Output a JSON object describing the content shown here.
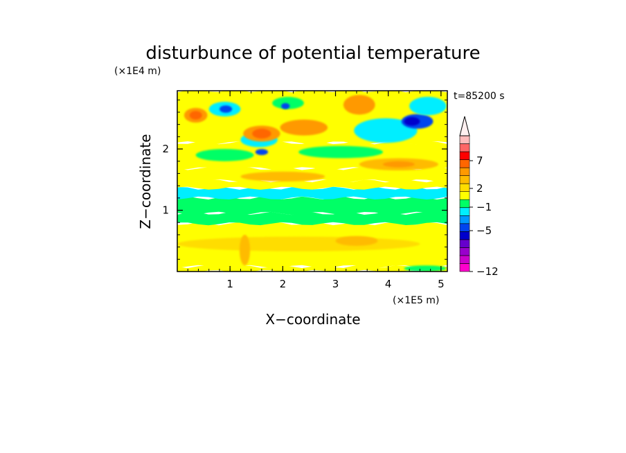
{
  "chart_data": {
    "type": "heatmap",
    "title": "disturbunce of potential temperature",
    "xlabel": "X−coordinate",
    "ylabel": "Z−coordinate",
    "x_unit": "(×1E5 m)",
    "y_unit": "(×1E4 m)",
    "time_label": "t=85200 s",
    "xlim": [
      0,
      5.12
    ],
    "ylim": [
      0,
      2.95
    ],
    "x_ticks": [
      1,
      2,
      3,
      4,
      5
    ],
    "y_ticks": [
      1,
      2
    ],
    "colorbar": {
      "levels": [
        -12,
        -10,
        -8,
        -7,
        -6,
        -5,
        -4,
        -3,
        -2,
        -1,
        0,
        1,
        2,
        3,
        4,
        5,
        6,
        7,
        8,
        9,
        10
      ],
      "colors": [
        "#ff00cc",
        "#cc00cc",
        "#9900cc",
        "#6600cc",
        "#0000cc",
        "#0044ee",
        "#0099ff",
        "#00eeff",
        "#00ff66",
        "#ffff00",
        "#ffdd00",
        "#ffbb00",
        "#ff9900",
        "#ff6600",
        "#ff0000",
        "#ff6666",
        "#ffbbbb"
      ],
      "tick_labels": [
        "7",
        "2",
        "−1",
        "−5",
        "−12"
      ],
      "extend": "max"
    },
    "bands": [
      {
        "z": [
          0.0,
          0.08
        ],
        "value": 1,
        "color": "#ffff00"
      },
      {
        "z": [
          0.08,
          0.78
        ],
        "value": 1,
        "color": "#ffff00"
      },
      {
        "z": [
          0.78,
          0.95
        ],
        "value": -1,
        "color": "#00ff66"
      },
      {
        "z": [
          0.95,
          1.2
        ],
        "value": -1,
        "color": "#00ff66"
      },
      {
        "z": [
          1.2,
          1.36
        ],
        "value": -2,
        "color": "#00eeff"
      },
      {
        "z": [
          1.36,
          1.48
        ],
        "value": 1,
        "color": "#ffff00"
      },
      {
        "z": [
          1.48,
          1.68
        ],
        "value": 1,
        "color": "#ffff00"
      },
      {
        "z": [
          1.68,
          2.1
        ],
        "value": 1,
        "color": "#ffff00"
      },
      {
        "z": [
          2.1,
          2.95
        ],
        "value": 1,
        "color": "#ffff00"
      }
    ],
    "blobs": [
      {
        "x": 0.35,
        "z": 2.55,
        "rx": 0.22,
        "rz": 0.12,
        "color": "#ff9900"
      },
      {
        "x": 0.35,
        "z": 2.55,
        "rx": 0.12,
        "rz": 0.07,
        "color": "#ff6600"
      },
      {
        "x": 0.9,
        "z": 2.65,
        "rx": 0.3,
        "rz": 0.12,
        "color": "#00eeff"
      },
      {
        "x": 0.92,
        "z": 2.65,
        "rx": 0.12,
        "rz": 0.06,
        "color": "#0044ee"
      },
      {
        "x": 1.55,
        "z": 2.15,
        "rx": 0.35,
        "rz": 0.12,
        "color": "#00eeff"
      },
      {
        "x": 1.6,
        "z": 2.25,
        "rx": 0.35,
        "rz": 0.13,
        "color": "#ff9900"
      },
      {
        "x": 1.6,
        "z": 2.25,
        "rx": 0.18,
        "rz": 0.08,
        "color": "#ff6600"
      },
      {
        "x": 1.6,
        "z": 1.95,
        "rx": 0.12,
        "rz": 0.05,
        "color": "#0044ee"
      },
      {
        "x": 2.4,
        "z": 2.35,
        "rx": 0.45,
        "rz": 0.13,
        "color": "#ff9900"
      },
      {
        "x": 2.1,
        "z": 2.75,
        "rx": 0.3,
        "rz": 0.1,
        "color": "#00ff66"
      },
      {
        "x": 2.05,
        "z": 2.7,
        "rx": 0.08,
        "rz": 0.05,
        "color": "#0044ee"
      },
      {
        "x": 3.45,
        "z": 2.72,
        "rx": 0.3,
        "rz": 0.16,
        "color": "#ff9900"
      },
      {
        "x": 3.95,
        "z": 2.3,
        "rx": 0.6,
        "rz": 0.2,
        "color": "#00eeff"
      },
      {
        "x": 4.55,
        "z": 2.45,
        "rx": 0.3,
        "rz": 0.12,
        "color": "#0044ee"
      },
      {
        "x": 4.45,
        "z": 2.45,
        "rx": 0.15,
        "rz": 0.07,
        "color": "#0000cc"
      },
      {
        "x": 4.75,
        "z": 2.7,
        "rx": 0.35,
        "rz": 0.15,
        "color": "#00eeff"
      },
      {
        "x": 4.2,
        "z": 1.75,
        "rx": 0.75,
        "rz": 0.1,
        "color": "#ffbb00"
      },
      {
        "x": 4.2,
        "z": 1.75,
        "rx": 0.3,
        "rz": 0.05,
        "color": "#ff9900"
      },
      {
        "x": 3.1,
        "z": 1.95,
        "rx": 0.8,
        "rz": 0.1,
        "color": "#00ff66"
      },
      {
        "x": 0.9,
        "z": 1.9,
        "rx": 0.55,
        "rz": 0.1,
        "color": "#00ff66"
      },
      {
        "x": 2.0,
        "z": 1.55,
        "rx": 0.8,
        "rz": 0.08,
        "color": "#ffbb00"
      },
      {
        "x": 2.3,
        "z": 0.45,
        "rx": 2.3,
        "rz": 0.12,
        "color": "#ffdd00"
      },
      {
        "x": 1.28,
        "z": 0.35,
        "rx": 0.1,
        "rz": 0.25,
        "color": "#ffbb00"
      },
      {
        "x": 3.4,
        "z": 0.5,
        "rx": 0.4,
        "rz": 0.08,
        "color": "#ffbb00"
      },
      {
        "x": 4.7,
        "z": 0.05,
        "rx": 0.4,
        "rz": 0.05,
        "color": "#00ff66"
      }
    ]
  }
}
